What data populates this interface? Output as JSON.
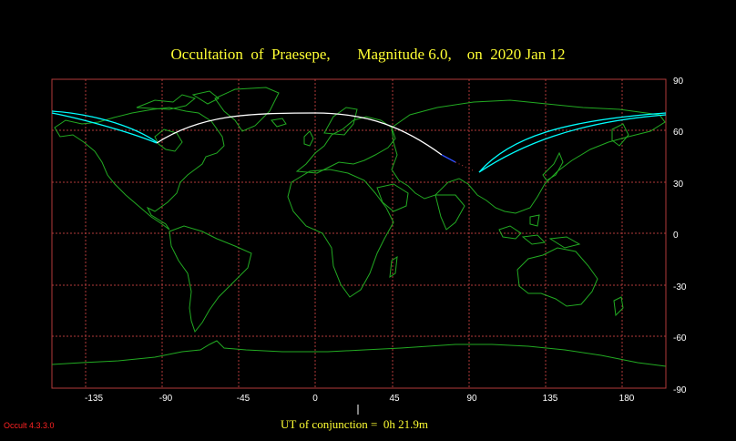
{
  "title": "Occultation  of  Praesepe,       Magnitude 6.0,    on  2020 Jan 12",
  "x_ticks": [
    "-135",
    "-90",
    "-45",
    "0",
    "45",
    "90",
    "135",
    "180"
  ],
  "y_ticks": [
    "90",
    "60",
    "30",
    "0",
    "-30",
    "-60",
    "-90"
  ],
  "conjunction_label": "UT of conjunction =  0h 21.9m",
  "version": "Occult 4.3.3.0",
  "colors": {
    "grid": "#b23a3a",
    "coast": "#22aa22",
    "title": "#ffff33",
    "daylight_track": "#ffffff",
    "limit_lines": "#00ffff",
    "twilight_track": "#3050ff",
    "version_text": "#ff2222"
  }
}
